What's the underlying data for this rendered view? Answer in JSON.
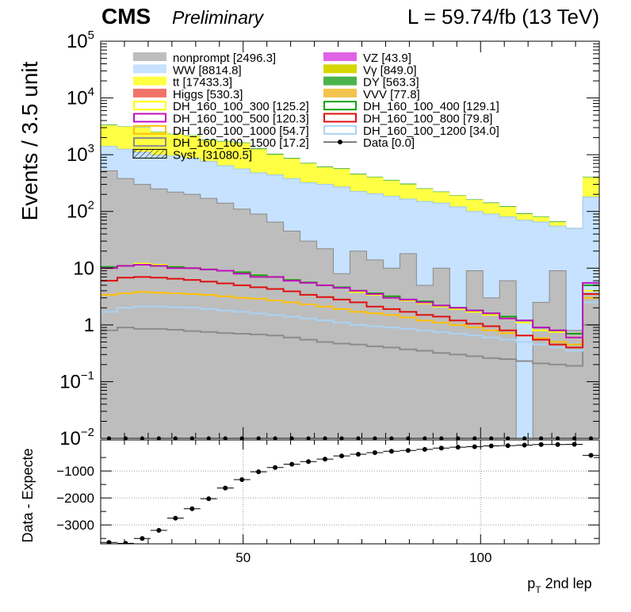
{
  "header": {
    "experiment": "CMS",
    "status": "Preliminary",
    "lumi": "L = 59.74/fb (13 TeV)"
  },
  "colors": {
    "nonprompt": "#bdbdbd",
    "WW": "#c6e2ff",
    "tt": "#ffff44",
    "Higgs": "#f27469",
    "VZ": "#e063e6",
    "Vg": "#d6d600",
    "DY": "#4bb34b",
    "VVV": "#f2c44d",
    "DH300": "#ffff00",
    "DH400": "#11a311",
    "DH500": "#c010c0",
    "DH800": "#e01010",
    "DH1000": "#ffc000",
    "DH1200": "#a9d3f5",
    "DH1500": "#8c8c8c",
    "data": "#000000"
  },
  "legend": [
    {
      "key": "nonprompt",
      "label": "nonprompt [2496.3]",
      "style": "fill"
    },
    {
      "key": "VZ",
      "label": "VZ [43.9]",
      "style": "fill"
    },
    {
      "key": "WW",
      "label": "WW [8814.8]",
      "style": "fill"
    },
    {
      "key": "Vg",
      "label": "Vγ [849.0]",
      "style": "fill"
    },
    {
      "key": "tt",
      "label": "tt [17433.3]",
      "style": "fill"
    },
    {
      "key": "DY",
      "label": "DY [563.3]",
      "style": "fill"
    },
    {
      "key": "Higgs",
      "label": "Higgs [530.3]",
      "style": "fill"
    },
    {
      "key": "VVV",
      "label": "VVV [77.8]",
      "style": "fill"
    },
    {
      "key": "DH300",
      "label": "DH_160_100_300 [125.2]",
      "style": "line"
    },
    {
      "key": "DH400",
      "label": "DH_160_100_400 [129.1]",
      "style": "line"
    },
    {
      "key": "DH500",
      "label": "DH_160_100_500 [120.3]",
      "style": "line"
    },
    {
      "key": "DH800",
      "label": "DH_160_100_800 [79.8]",
      "style": "line"
    },
    {
      "key": "DH1000",
      "label": "DH_160_100_1000 [54.7]",
      "style": "line"
    },
    {
      "key": "DH1200",
      "label": "DH_160_100_1200 [34.0]",
      "style": "line"
    },
    {
      "key": "DH1500",
      "label": "DH_160_100_1500 [17.2]",
      "style": "line"
    },
    {
      "key": "data",
      "label": "Data [0.0]",
      "style": "marker"
    },
    {
      "key": "syst",
      "label": "Syst. [31080.5]",
      "style": "hatch"
    }
  ],
  "chart_data": [
    {
      "type": "bar",
      "subtype": "stacked-histogram-logy",
      "ylabel": "Events / 3.5 unit",
      "ylog": true,
      "ylim": [
        0.01,
        100000
      ],
      "y_ticks": [
        {
          "v": 0.01,
          "label": "10^-2"
        },
        {
          "v": 0.1,
          "label": "10^-1"
        },
        {
          "v": 1,
          "label": "1"
        },
        {
          "v": 10,
          "label": "10"
        },
        {
          "v": 100,
          "label": "10^2"
        },
        {
          "v": 1000,
          "label": "10^3"
        },
        {
          "v": 10000,
          "label": "10^4"
        },
        {
          "v": 100000,
          "label": "10^5"
        }
      ],
      "xlim": [
        20,
        125
      ],
      "bin_edges": [
        20,
        23.5,
        27,
        30.5,
        34,
        37.5,
        41,
        44.5,
        48,
        51.5,
        55,
        58.5,
        62,
        65.5,
        69,
        72.5,
        76,
        79.5,
        83,
        86.5,
        90,
        93.5,
        97,
        100.5,
        104,
        107.5,
        111,
        114.5,
        118,
        121.5,
        125
      ],
      "stack": {
        "nonprompt": [
          520,
          380,
          300,
          250,
          220,
          200,
          170,
          140,
          110,
          90,
          65,
          45,
          30,
          22,
          8,
          20,
          14,
          10,
          18,
          5,
          10,
          2,
          9,
          3,
          6,
          0.004,
          2.5,
          9,
          0.8,
          3.6
        ],
        "WW_top": [
          1400,
          1250,
          1100,
          980,
          950,
          860,
          760,
          640,
          560,
          480,
          440,
          380,
          320,
          300,
          270,
          225,
          205,
          185,
          165,
          150,
          140,
          120,
          100,
          90,
          80,
          70,
          65,
          55,
          50,
          180
        ],
        "tt_top": [
          3300,
          3100,
          3000,
          2500,
          2300,
          2150,
          1800,
          1700,
          1600,
          1250,
          1000,
          850,
          700,
          600,
          560,
          450,
          400,
          350,
          300,
          250,
          220,
          190,
          160,
          140,
          120,
          90,
          80,
          65,
          50,
          400
        ],
        "DY_top": [
          3400,
          3150,
          3050,
          2550,
          2350,
          2200,
          1850,
          1750,
          1650,
          1300,
          1040,
          880,
          720,
          620,
          580,
          465,
          410,
          360,
          310,
          256,
          225,
          194,
          164,
          144,
          124,
          93,
          82,
          67,
          51,
          410
        ]
      },
      "lines": {
        "DH500": [
          10,
          11,
          11.5,
          11,
          10,
          10,
          9.5,
          9,
          8,
          7,
          7,
          6,
          5.5,
          5,
          4.5,
          4,
          3.5,
          3,
          2.8,
          2.5,
          2.2,
          2,
          1.8,
          1.6,
          1.3,
          1.2,
          0.9,
          0.8,
          0.6,
          5.5
        ],
        "DH400": [
          10.5,
          11,
          11.5,
          11,
          10.5,
          10,
          9.5,
          9,
          8.5,
          7.5,
          7,
          6.2,
          5.6,
          5,
          4.6,
          4,
          3.6,
          3.2,
          2.8,
          2.6,
          2.2,
          2,
          1.8,
          1.6,
          1.4,
          1.2,
          0.9,
          0.8,
          0.7,
          5
        ],
        "DH300": [
          10,
          11,
          12,
          11.5,
          10.5,
          10,
          9.5,
          9,
          8.5,
          7.5,
          7,
          6.2,
          5.5,
          5,
          4.5,
          3.8,
          3.4,
          3,
          2.7,
          2.4,
          2.1,
          1.9,
          1.7,
          1.5,
          1.3,
          1.1,
          0.8,
          0.75,
          0.6,
          4
        ],
        "DH800": [
          6,
          6.8,
          7,
          6.8,
          6.5,
          6.2,
          5.8,
          5.4,
          5,
          4.6,
          4.3,
          3.9,
          3.4,
          3.1,
          2.8,
          2.5,
          2.1,
          1.9,
          1.7,
          1.5,
          1.4,
          1.2,
          1.05,
          0.95,
          0.8,
          0.65,
          0.55,
          0.45,
          0.4,
          3.5
        ],
        "DH1000": [
          3.4,
          3.6,
          3.8,
          3.7,
          3.6,
          3.5,
          3.4,
          3.2,
          3,
          2.9,
          2.7,
          2.5,
          2.3,
          2.1,
          1.9,
          1.7,
          1.6,
          1.5,
          1.35,
          1.2,
          1.1,
          1,
          0.9,
          0.8,
          0.72,
          0.65,
          0.58,
          0.5,
          0.45,
          3
        ],
        "DH1200": [
          1.7,
          2,
          2.1,
          2.1,
          2.05,
          2,
          1.9,
          1.8,
          1.7,
          1.6,
          1.5,
          1.4,
          1.3,
          1.2,
          1.1,
          1,
          0.95,
          0.9,
          0.85,
          0.8,
          0.75,
          0.7,
          0.65,
          0.6,
          0.55,
          0.5,
          0.45,
          0.4,
          0.35,
          2.5
        ],
        "DH1500": [
          0.8,
          0.9,
          0.85,
          0.85,
          0.82,
          0.78,
          0.75,
          0.72,
          0.7,
          0.68,
          0.65,
          0.6,
          0.55,
          0.5,
          0.47,
          0.45,
          0.42,
          0.4,
          0.37,
          0.35,
          0.32,
          0.3,
          0.28,
          0.26,
          0.25,
          0.23,
          0.21,
          0.2,
          0.19,
          1
        ]
      },
      "data_points": [
        0,
        0,
        0,
        0,
        0,
        0,
        0,
        0,
        0,
        0,
        0,
        0,
        0,
        0,
        0,
        0,
        0,
        0,
        0,
        0,
        0,
        0,
        0,
        0,
        0,
        0,
        0,
        0,
        0,
        0
      ]
    },
    {
      "type": "scatter",
      "subtype": "ratio-panel",
      "ylabel": "Data - Expecte",
      "xlabel": "p_T 2nd lep",
      "xlim": [
        20,
        125
      ],
      "ylim": [
        -3700,
        150
      ],
      "x_ticks": [
        50,
        100
      ],
      "y_ticks": [
        -1000,
        -2000,
        -3000
      ],
      "x": [
        21.75,
        25.25,
        28.75,
        32.25,
        35.75,
        39.25,
        42.75,
        46.25,
        49.75,
        53.25,
        56.75,
        60.25,
        63.75,
        67.25,
        70.75,
        74.25,
        77.75,
        81.25,
        84.75,
        88.25,
        91.75,
        95.25,
        98.75,
        102.25,
        105.75,
        109.25,
        112.75,
        116.25,
        119.75,
        123.25
      ],
      "y": [
        -3650,
        -3680,
        -3500,
        -3200,
        -2750,
        -2400,
        -2030,
        -1630,
        -1320,
        -1030,
        -870,
        -750,
        -650,
        -560,
        -440,
        -380,
        -320,
        -270,
        -240,
        -200,
        -150,
        -120,
        -100,
        -70,
        -60,
        -40,
        -20,
        -20,
        -10,
        -420
      ]
    }
  ]
}
